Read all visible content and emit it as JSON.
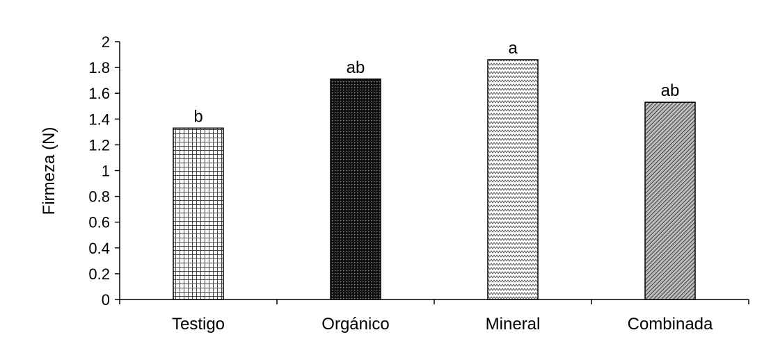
{
  "chart_data": {
    "type": "bar",
    "ylabel": "Firmeza (N)",
    "xlabel": "",
    "ylim": [
      0,
      2
    ],
    "yticks": [
      "0",
      "0.2",
      "0.4",
      "0.6",
      "0.8",
      "1",
      "1.2",
      "1.4",
      "1.6",
      "1.8",
      "2"
    ],
    "categories": [
      "Testigo",
      "Orgánico",
      "Mineral",
      "Combinada"
    ],
    "values": [
      1.33,
      1.71,
      1.86,
      1.53
    ],
    "significance_letters": [
      "b",
      "ab",
      "a",
      "ab"
    ],
    "bar_fill_patterns": [
      "grid",
      "dense-dots",
      "zigzag",
      "diagonal-hatch"
    ],
    "grid": false,
    "legend": "none"
  }
}
